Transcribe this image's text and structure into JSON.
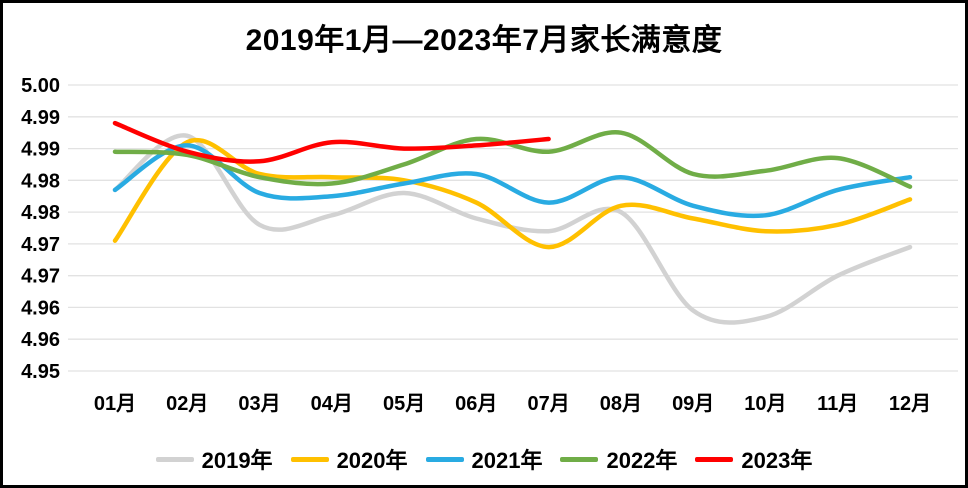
{
  "title": "2019年1月—2023年7月家长满意度",
  "chart_data": {
    "type": "line",
    "title": "2019年1月—2023年7月家长满意度",
    "xlabel": "",
    "ylabel": "",
    "categories": [
      "01月",
      "02月",
      "03月",
      "04月",
      "05月",
      "06月",
      "07月",
      "08月",
      "09月",
      "10月",
      "11月",
      "12月"
    ],
    "y_tick_labels": [
      "5.00",
      "4.99",
      "4.99",
      "4.98",
      "4.98",
      "4.97",
      "4.97",
      "4.96",
      "4.96",
      "4.95"
    ],
    "ylim": [
      4.955,
      5.0
    ],
    "y_step": 0.005,
    "grid": true,
    "legend_position": "bottom",
    "series": [
      {
        "name": "2019年",
        "color": "#D2D2D2",
        "values": [
          4.9835,
          4.992,
          4.978,
          4.9795,
          4.983,
          4.979,
          4.977,
          4.98,
          4.9645,
          4.9635,
          4.97,
          4.9745
        ]
      },
      {
        "name": "2020年",
        "color": "#FFC000",
        "values": [
          4.9755,
          4.991,
          4.986,
          4.9855,
          4.985,
          4.9815,
          4.9745,
          4.981,
          4.979,
          4.977,
          4.978,
          4.982
        ]
      },
      {
        "name": "2021年",
        "color": "#29ABE2",
        "values": [
          4.9835,
          4.9905,
          4.983,
          4.9825,
          4.9845,
          4.986,
          4.9815,
          4.9855,
          4.981,
          4.9795,
          4.9835,
          4.9855
        ]
      },
      {
        "name": "2022年",
        "color": "#70AD47",
        "values": [
          4.9895,
          4.989,
          4.9855,
          4.9845,
          4.9875,
          4.9915,
          4.9895,
          4.9925,
          4.986,
          4.9865,
          4.9885,
          4.984
        ]
      },
      {
        "name": "2023年",
        "color": "#FF0000",
        "values": [
          4.994,
          4.9895,
          4.988,
          4.991,
          4.99,
          4.9905,
          4.9915
        ]
      }
    ]
  }
}
